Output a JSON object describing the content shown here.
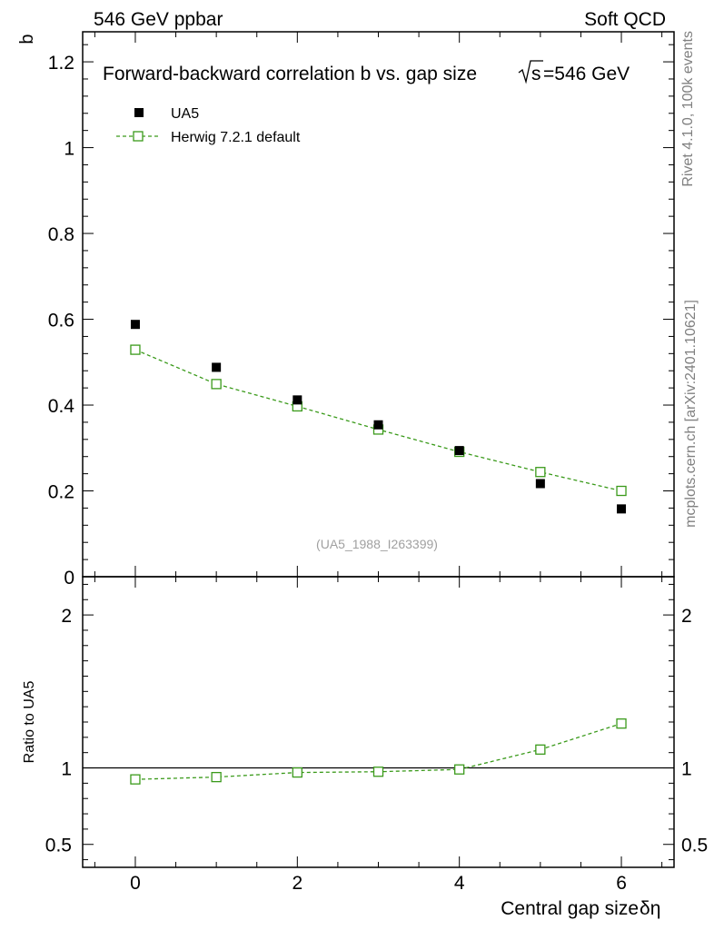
{
  "header": {
    "left": "546 GeV ppbar",
    "right": "Soft QCD"
  },
  "side_text": {
    "rivet": "Rivet 4.1.0,  100k events",
    "mcplots": "mcplots.cern.ch [arXiv:2401.10621]"
  },
  "colors": {
    "data": "#000000",
    "mc": "#3a9a1a"
  },
  "chart_data": [
    {
      "type": "scatter",
      "title": "Forward-backward correlation b  vs. gap size",
      "title_sqrt": "s",
      "title_energy": "=546 GeV",
      "ylabel": "b",
      "watermark": "(UA5_1988_I263399)",
      "xlim": [
        -0.65,
        6.65
      ],
      "ylim": [
        0,
        1.27
      ],
      "yticks": [
        0,
        0.2,
        0.4,
        0.6,
        0.8,
        1,
        1.2
      ],
      "ytick_labels": [
        "0",
        "0.2",
        "0.4",
        "0.6",
        "0.8",
        "1",
        "1.2"
      ],
      "legend": {
        "position": "top-left",
        "entries": [
          "UA5",
          "Herwig 7.2.1 default"
        ]
      },
      "series": [
        {
          "name": "UA5",
          "style": "filled-square",
          "x": [
            0,
            1,
            2,
            3,
            4,
            5,
            6
          ],
          "y": [
            0.588,
            0.488,
            0.412,
            0.354,
            0.294,
            0.217,
            0.158
          ]
        },
        {
          "name": "Herwig 7.2.1 default",
          "style": "open-square-dashed",
          "x": [
            0,
            1,
            2,
            3,
            4,
            5,
            6
          ],
          "y": [
            0.529,
            0.449,
            0.397,
            0.343,
            0.291,
            0.244,
            0.2
          ]
        }
      ]
    },
    {
      "type": "line",
      "ylabel": "Ratio to UA5",
      "xlabel": "Central gap size",
      "xlabel_symbol": "δη",
      "xlim": [
        -0.65,
        6.65
      ],
      "ylim": [
        0.35,
        2.25
      ],
      "xticks": [
        0,
        2,
        4,
        6
      ],
      "xtick_labels": [
        "0",
        "2",
        "4",
        "6"
      ],
      "yticks": [
        0.5,
        1,
        2
      ],
      "ytick_labels": [
        "0.5",
        "1",
        "2"
      ],
      "reference_line": 1,
      "series": [
        {
          "name": "Herwig 7.2.1 default",
          "x": [
            0,
            1,
            2,
            3,
            4,
            5,
            6
          ],
          "y": [
            0.925,
            0.94,
            0.97,
            0.975,
            0.99,
            1.12,
            1.29
          ]
        }
      ]
    }
  ]
}
